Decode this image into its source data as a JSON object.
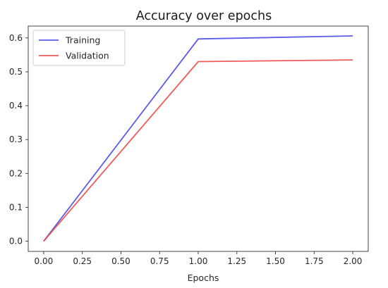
{
  "chart_data": {
    "type": "line",
    "title": "Accuracy over epochs",
    "xlabel": "Epochs",
    "ylabel": "",
    "xlim": [
      -0.1,
      2.1
    ],
    "ylim": [
      -0.03,
      0.635
    ],
    "x_ticks": [
      0.0,
      0.25,
      0.5,
      0.75,
      1.0,
      1.25,
      1.5,
      1.75,
      2.0
    ],
    "x_tick_labels": [
      "0.00",
      "0.25",
      "0.50",
      "0.75",
      "1.00",
      "1.25",
      "1.50",
      "1.75",
      "2.00"
    ],
    "y_ticks": [
      0.0,
      0.1,
      0.2,
      0.3,
      0.4,
      0.5,
      0.6
    ],
    "y_tick_labels": [
      "0.0",
      "0.1",
      "0.2",
      "0.3",
      "0.4",
      "0.5",
      "0.6"
    ],
    "x": [
      0,
      1,
      2
    ],
    "series": [
      {
        "name": "Training",
        "values": [
          0.0,
          0.597,
          0.606
        ],
        "color": "#4a4ae8"
      },
      {
        "name": "Validation",
        "values": [
          0.0,
          0.53,
          0.535
        ],
        "color": "#f04848"
      }
    ],
    "grid": false,
    "legend": "top-left"
  }
}
